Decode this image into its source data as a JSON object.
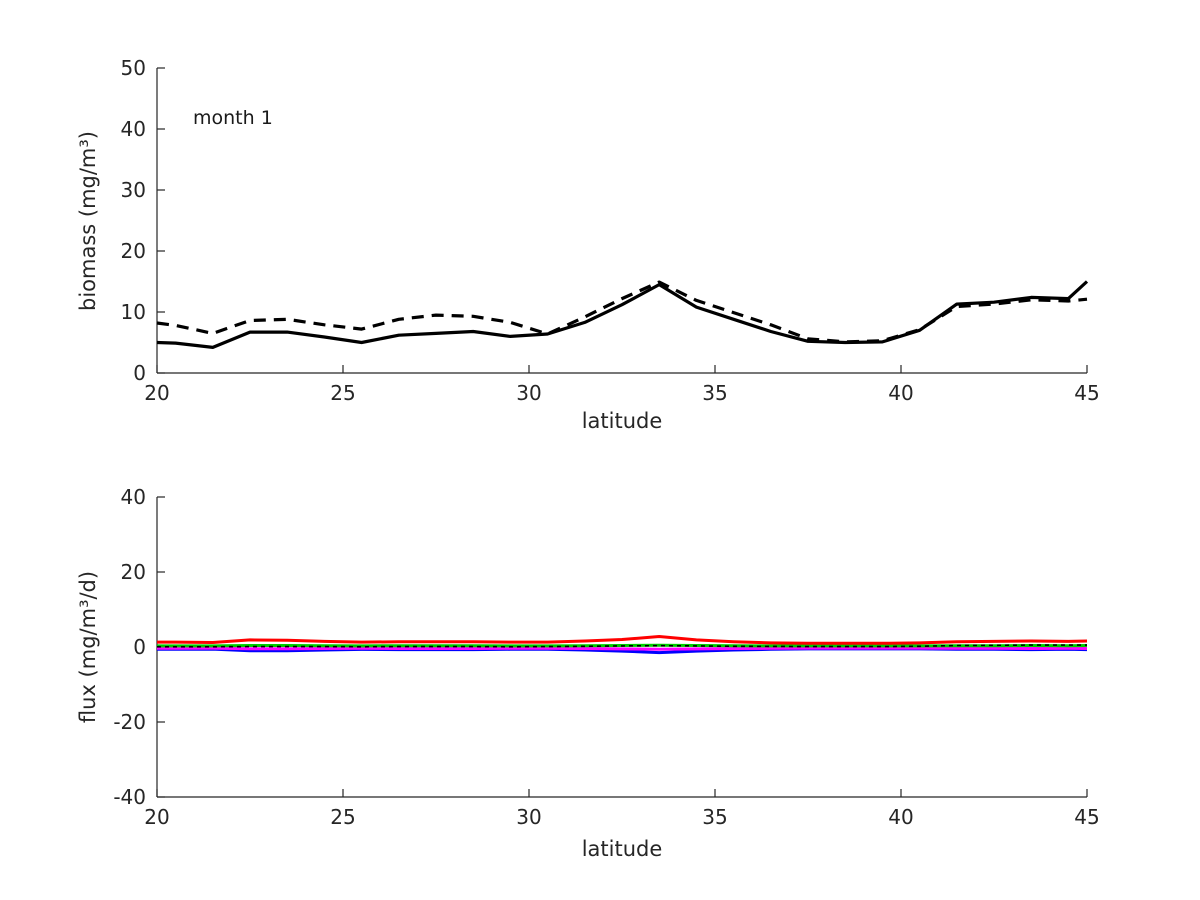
{
  "style": {
    "axis_color": "#262626",
    "text_color": "#262626",
    "background": "#ffffff"
  },
  "annotation_label": "month 1",
  "chart_data": [
    {
      "type": "line",
      "annotation": "month 1",
      "xlabel": "latitude",
      "ylabel": "biomass (mg/m³)",
      "xlim": [
        20,
        45
      ],
      "ylim": [
        0,
        50
      ],
      "xticks": [
        20,
        25,
        30,
        35,
        40,
        45
      ],
      "yticks": [
        0,
        10,
        20,
        30,
        40,
        50
      ],
      "grid": false,
      "legend": "none",
      "x": [
        20,
        20.5,
        21.5,
        22.5,
        23.5,
        24.5,
        25.5,
        26.5,
        27.5,
        28.5,
        29.5,
        30.5,
        31.5,
        32.5,
        33.5,
        34.5,
        35.5,
        36.5,
        37.5,
        38.5,
        39.5,
        40.5,
        41.5,
        42.5,
        43.5,
        44.5,
        45
      ],
      "series": [
        {
          "name": "biomass-solid",
          "color": "#000000",
          "style": "solid",
          "width": 3.2,
          "dash": "",
          "values": [
            5.0,
            4.9,
            4.2,
            6.7,
            6.7,
            5.9,
            5.0,
            6.2,
            6.5,
            6.8,
            6.0,
            6.4,
            8.3,
            11.2,
            14.5,
            10.8,
            8.8,
            6.8,
            5.2,
            5.0,
            5.1,
            7.0,
            11.3,
            11.6,
            12.4,
            12.2,
            15.0
          ]
        },
        {
          "name": "biomass-dashed",
          "color": "#000000",
          "style": "dashed",
          "width": 3.2,
          "dash": "12 8",
          "values": [
            8.2,
            7.8,
            6.5,
            8.6,
            8.8,
            7.9,
            7.2,
            8.8,
            9.5,
            9.3,
            8.3,
            6.4,
            9.2,
            12.2,
            14.9,
            11.9,
            9.9,
            7.9,
            5.6,
            5.1,
            5.3,
            7.1,
            10.9,
            11.3,
            12.0,
            11.8,
            12.1
          ]
        }
      ]
    },
    {
      "type": "line",
      "annotation": "",
      "xlabel": "latitude",
      "ylabel": "flux (mg/m³/d)",
      "xlim": [
        20,
        45
      ],
      "ylim": [
        -40,
        40
      ],
      "xticks": [
        20,
        25,
        30,
        35,
        40,
        45
      ],
      "yticks": [
        -40,
        -20,
        0,
        20,
        40
      ],
      "grid": false,
      "legend": "none",
      "x": [
        20,
        20.5,
        21.5,
        22.5,
        23.5,
        24.5,
        25.5,
        26.5,
        27.5,
        28.5,
        29.5,
        30.5,
        31.5,
        32.5,
        33.5,
        34.5,
        35.5,
        36.5,
        37.5,
        38.5,
        39.5,
        40.5,
        41.5,
        42.5,
        43.5,
        44.5,
        45
      ],
      "series": [
        {
          "name": "flux-blue",
          "color": "#0000ff",
          "style": "solid",
          "width": 3,
          "dash": "",
          "values": [
            -0.6,
            -0.6,
            -0.55,
            -1.0,
            -1.0,
            -0.8,
            -0.65,
            -0.7,
            -0.7,
            -0.7,
            -0.6,
            -0.6,
            -0.8,
            -1.1,
            -1.5,
            -1.1,
            -0.8,
            -0.6,
            -0.5,
            -0.5,
            -0.5,
            -0.5,
            -0.6,
            -0.6,
            -0.7,
            -0.6,
            -0.7
          ]
        },
        {
          "name": "flux-magenta",
          "color": "#ff00ff",
          "style": "solid",
          "width": 3,
          "dash": "",
          "values": [
            -0.35,
            -0.35,
            -0.3,
            -0.45,
            -0.45,
            -0.4,
            -0.35,
            -0.4,
            -0.4,
            -0.4,
            -0.35,
            -0.35,
            -0.4,
            -0.5,
            -0.6,
            -0.5,
            -0.4,
            -0.35,
            -0.3,
            -0.3,
            -0.3,
            -0.3,
            -0.35,
            -0.35,
            -0.4,
            -0.35,
            -0.4
          ]
        },
        {
          "name": "flux-green",
          "color": "#00cc00",
          "style": "solid",
          "width": 3,
          "dash": "",
          "values": [
            0.3,
            0.3,
            0.3,
            0.4,
            0.4,
            0.35,
            0.3,
            0.35,
            0.35,
            0.35,
            0.3,
            0.3,
            0.35,
            0.4,
            0.45,
            0.4,
            0.35,
            0.3,
            0.3,
            0.3,
            0.3,
            0.3,
            0.35,
            0.35,
            0.4,
            0.35,
            0.4
          ]
        },
        {
          "name": "flux-red",
          "color": "#ff0000",
          "style": "solid",
          "width": 3,
          "dash": "",
          "values": [
            1.3,
            1.3,
            1.2,
            1.9,
            1.8,
            1.5,
            1.3,
            1.4,
            1.4,
            1.4,
            1.3,
            1.3,
            1.6,
            2.0,
            2.8,
            1.9,
            1.4,
            1.1,
            1.0,
            1.0,
            1.0,
            1.1,
            1.4,
            1.5,
            1.6,
            1.5,
            1.6
          ]
        },
        {
          "name": "flux-black-dashed",
          "color": "#000000",
          "style": "dashed",
          "width": 1.6,
          "dash": "4 4",
          "values": [
            0.05,
            0.05,
            0.05,
            0.1,
            0.1,
            0.1,
            0.05,
            0.1,
            0.1,
            0.1,
            0.05,
            0.1,
            0.2,
            0.3,
            0.35,
            0.3,
            0.2,
            0.15,
            0.1,
            0.1,
            0.1,
            0.2,
            0.4,
            0.45,
            0.5,
            0.5,
            0.5
          ]
        }
      ]
    }
  ]
}
